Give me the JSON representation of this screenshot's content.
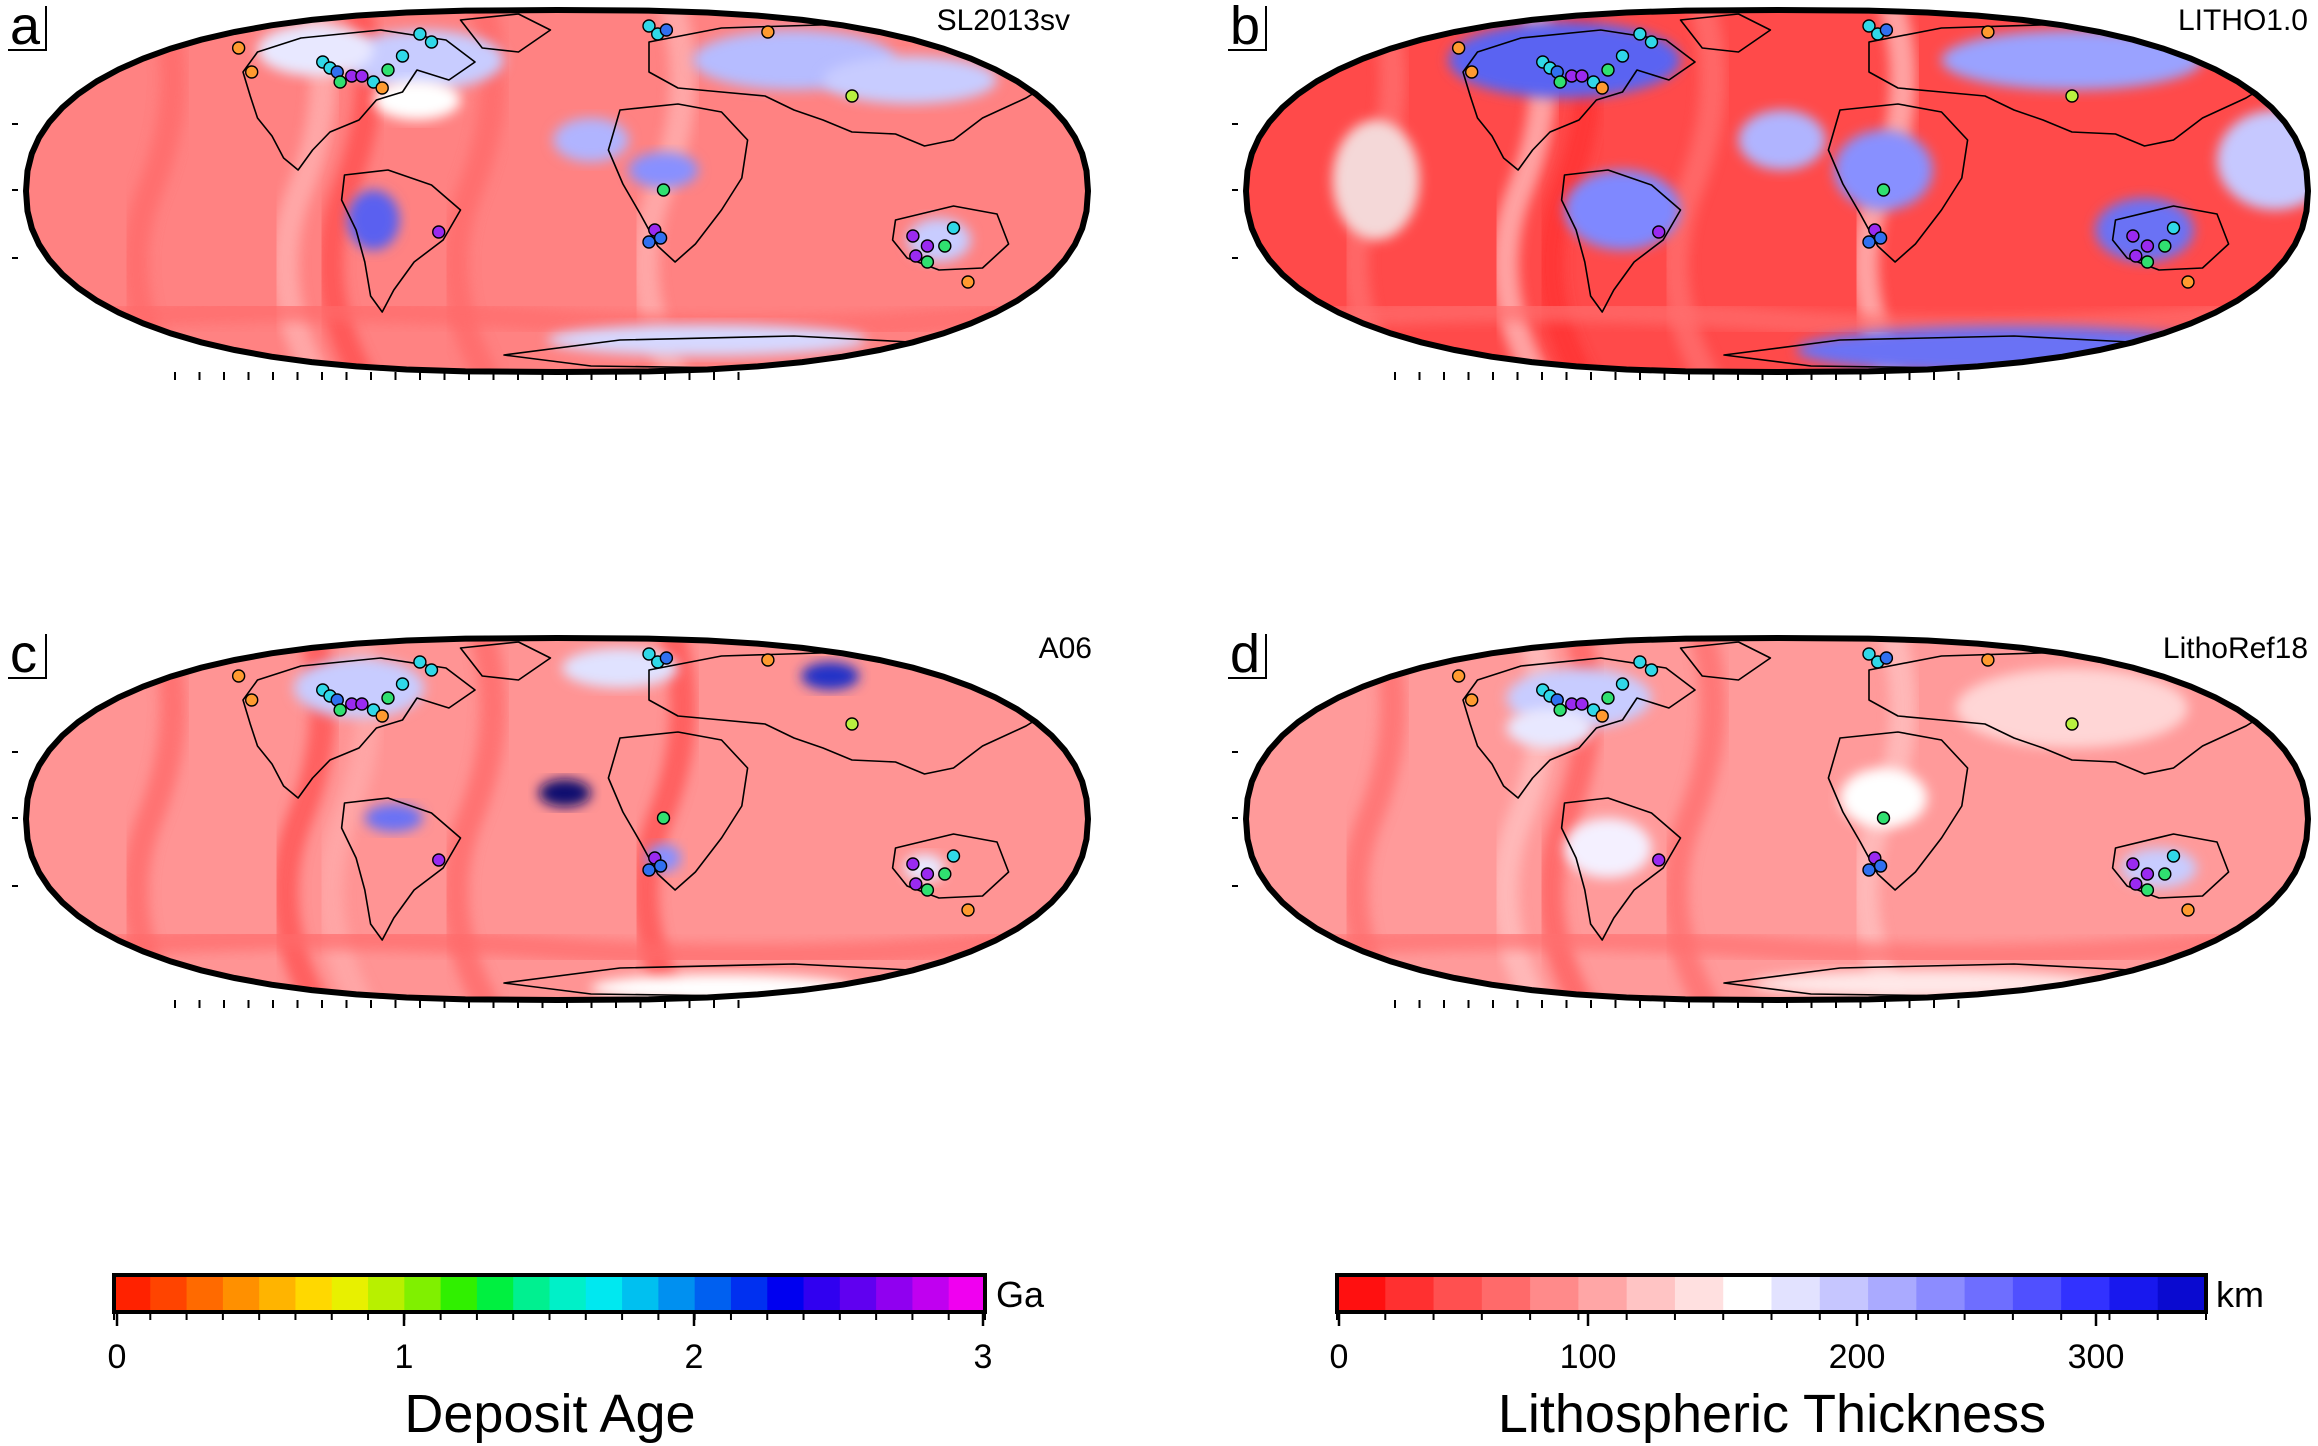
{
  "panels": [
    {
      "letter": "a",
      "title": "SL2013sv",
      "theme": "blue_strong"
    },
    {
      "letter": "b",
      "title": "LITHO1.0",
      "theme": "blue_scatter"
    },
    {
      "letter": "c",
      "title": "A06",
      "theme": "pink_ridges"
    },
    {
      "letter": "d",
      "title": "LithoRef18",
      "theme": "pink_mixed"
    }
  ],
  "colorbars": [
    {
      "name": "deposit-age",
      "unit": "Ga",
      "label": "Deposit Age",
      "ticks": [
        "0",
        "1",
        "2",
        "3"
      ],
      "colors": [
        "#ff2200",
        "#ff4400",
        "#ff6a00",
        "#ff9000",
        "#ffb400",
        "#ffd800",
        "#e8f000",
        "#b8f000",
        "#80f000",
        "#30f000",
        "#00f040",
        "#00f090",
        "#00f0c8",
        "#00e8f0",
        "#00c0f0",
        "#0090f0",
        "#0060f0",
        "#0030f0",
        "#0000f0",
        "#3000f0",
        "#6000f0",
        "#9000f0",
        "#c000f0",
        "#f000f0"
      ]
    },
    {
      "name": "lithospheric-thickness",
      "unit": "km",
      "label": "Lithospheric Thickness",
      "ticks": [
        "0",
        "100",
        "200",
        "300"
      ],
      "colors": [
        "#ff1010",
        "#ff3030",
        "#ff5050",
        "#ff6a6a",
        "#ff8a8a",
        "#ffa6a6",
        "#ffc4c4",
        "#ffe0e0",
        "#ffffff",
        "#e2e2ff",
        "#c6c6ff",
        "#aaaaff",
        "#8c8cff",
        "#6e6eff",
        "#5050ff",
        "#3232ff",
        "#1818ee",
        "#0a0ad0"
      ]
    }
  ],
  "deposit_colors": {
    "orange": "#ff9a30",
    "yellow_green": "#b8f040",
    "green": "#30e070",
    "cyan": "#30d8e8",
    "blue": "#3070f0",
    "purple": "#9a2af0"
  }
}
